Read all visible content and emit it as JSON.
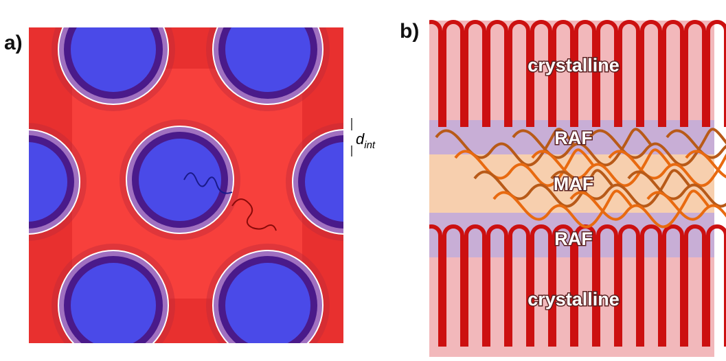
{
  "panel_a": {
    "label": "a)",
    "annotation": {
      "symbol": "d",
      "subscript": "int"
    }
  },
  "panel_b": {
    "label": "b)",
    "layers": [
      "crystalline",
      "RAF",
      "MAF",
      "RAF",
      "crystalline"
    ]
  }
}
